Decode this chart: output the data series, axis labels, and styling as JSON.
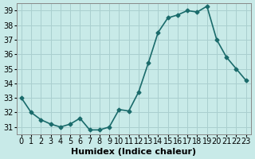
{
  "x": [
    0,
    1,
    2,
    3,
    4,
    5,
    6,
    7,
    8,
    9,
    10,
    11,
    12,
    13,
    14,
    15,
    16,
    17,
    18,
    19,
    20,
    21,
    22,
    23
  ],
  "y": [
    33,
    32,
    31.5,
    31.2,
    31,
    31.2,
    31.6,
    30.8,
    30.8,
    31,
    32.2,
    32.1,
    33.4,
    35.4,
    37.5,
    38.5,
    38.7,
    39,
    38.9,
    39.3,
    37,
    35.8,
    35,
    34.2
  ],
  "line_color": "#1a6b6b",
  "marker": "D",
  "marker_size": 2.5,
  "bg_color": "#c8eae8",
  "grid_color": "#aacfcf",
  "xlabel": "Humidex (Indice chaleur)",
  "ylim": [
    30.5,
    39.5
  ],
  "xlim": [
    -0.5,
    23.5
  ],
  "yticks": [
    31,
    32,
    33,
    34,
    35,
    36,
    37,
    38,
    39
  ],
  "xticks": [
    0,
    1,
    2,
    3,
    4,
    5,
    6,
    7,
    8,
    9,
    10,
    11,
    12,
    13,
    14,
    15,
    16,
    17,
    18,
    19,
    20,
    21,
    22,
    23
  ],
  "xlabel_fontsize": 8,
  "tick_fontsize": 7,
  "line_width": 1.2
}
